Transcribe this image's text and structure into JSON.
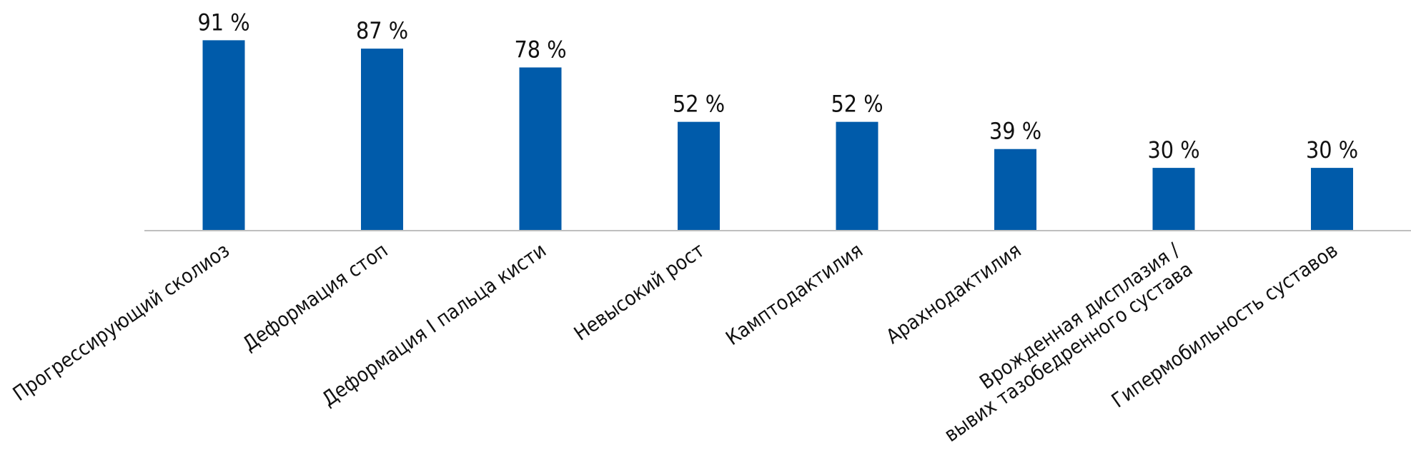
{
  "chart_data": {
    "type": "bar",
    "categories": [
      [
        "Прогрессирующий сколиоз"
      ],
      [
        "Деформация стоп"
      ],
      [
        "Деформация I пальца кисти"
      ],
      [
        "Невысокий рост"
      ],
      [
        "Камптодактилия"
      ],
      [
        "Арахнодактилия"
      ],
      [
        "Врожденная дисплазия /",
        "вывих тазобедренного сустава"
      ],
      [
        "Гипермобильность суставов"
      ]
    ],
    "values": [
      91,
      87,
      78,
      52,
      52,
      39,
      30,
      30
    ],
    "value_labels": [
      "91 %",
      "87 %",
      "78 %",
      "52 %",
      "52 %",
      "39 %",
      "30 %",
      "30 %"
    ],
    "ylim": [
      0,
      100
    ],
    "grid": false,
    "legend": "none",
    "bar_color": "#005BAA",
    "axis_color": "#BFBFBF"
  }
}
